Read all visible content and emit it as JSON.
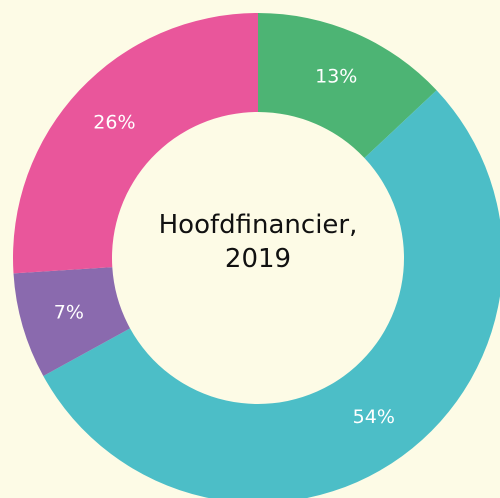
{
  "chart_data": {
    "type": "donut",
    "title": "Hoofdfinancier, 2019",
    "values": [
      13,
      54,
      7,
      26
    ],
    "value_labels": [
      "13%",
      "54%",
      "7%",
      "26%"
    ],
    "colors": [
      "#4db474",
      "#4cbec7",
      "#8a6aae",
      "#e9569b"
    ]
  }
}
